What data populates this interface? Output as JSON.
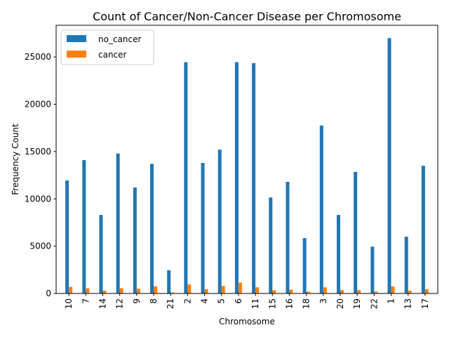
{
  "chart_data": {
    "type": "bar",
    "title": "Count of Cancer/Non-Cancer Disease per Chromosome",
    "xlabel": "Chromosome",
    "ylabel": "Frequency Count",
    "ylim": [
      0,
      28350
    ],
    "yticks": [
      0,
      5000,
      10000,
      15000,
      20000,
      25000
    ],
    "categories": [
      "10",
      "7",
      "14",
      "12",
      "9",
      "8",
      "21",
      "2",
      "4",
      "5",
      "6",
      "11",
      "15",
      "16",
      "18",
      "3",
      "20",
      "19",
      "22",
      "1",
      "13",
      "17"
    ],
    "series": [
      {
        "name": "no_cancer",
        "color": "#1f77b4",
        "values": [
          11950,
          14100,
          8300,
          14800,
          11200,
          13700,
          2450,
          24450,
          13800,
          15200,
          24450,
          24350,
          10150,
          11800,
          5850,
          17750,
          8300,
          12850,
          4950,
          27000,
          6000,
          13500
        ]
      },
      {
        "name": "cancer",
        "color": "#ff7f0e",
        "values": [
          700,
          550,
          300,
          550,
          500,
          750,
          100,
          950,
          450,
          800,
          1150,
          650,
          350,
          400,
          200,
          650,
          350,
          350,
          200,
          750,
          300,
          450
        ]
      }
    ],
    "legend": "top-left"
  }
}
